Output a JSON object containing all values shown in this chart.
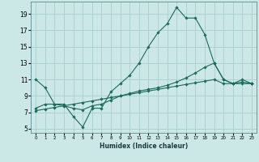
{
  "xlabel": "Humidex (Indice chaleur)",
  "ylabel": "",
  "xlim": [
    -0.5,
    23.5
  ],
  "ylim": [
    4.5,
    20.5
  ],
  "xticks": [
    0,
    1,
    2,
    3,
    4,
    5,
    6,
    7,
    8,
    9,
    10,
    11,
    12,
    13,
    14,
    15,
    16,
    17,
    18,
    19,
    20,
    21,
    22,
    23
  ],
  "yticks": [
    5,
    7,
    9,
    11,
    13,
    15,
    17,
    19
  ],
  "bg_color": "#cce8e6",
  "grid_color": "#aacece",
  "line_color": "#1a6b5a",
  "line1_y": [
    11,
    10,
    8,
    8,
    6.5,
    5.2,
    7.5,
    7.5,
    9.5,
    10.5,
    11.5,
    13,
    15,
    16.7,
    17.8,
    19.8,
    18.5,
    18.5,
    16.5,
    13,
    11,
    10.5,
    11,
    10.5
  ],
  "line2_y": [
    7.5,
    8,
    8,
    7.8,
    7.5,
    7.3,
    7.8,
    8.0,
    8.5,
    9.0,
    9.3,
    9.6,
    9.8,
    10.0,
    10.3,
    10.7,
    11.2,
    11.8,
    12.5,
    13.0,
    11.0,
    10.5,
    10.7,
    10.5
  ],
  "line3_y": [
    7.2,
    7.4,
    7.6,
    7.8,
    8.0,
    8.2,
    8.4,
    8.6,
    8.8,
    9.0,
    9.2,
    9.4,
    9.6,
    9.8,
    10.0,
    10.2,
    10.4,
    10.6,
    10.8,
    11.0,
    10.5,
    10.5,
    10.5,
    10.5
  ]
}
